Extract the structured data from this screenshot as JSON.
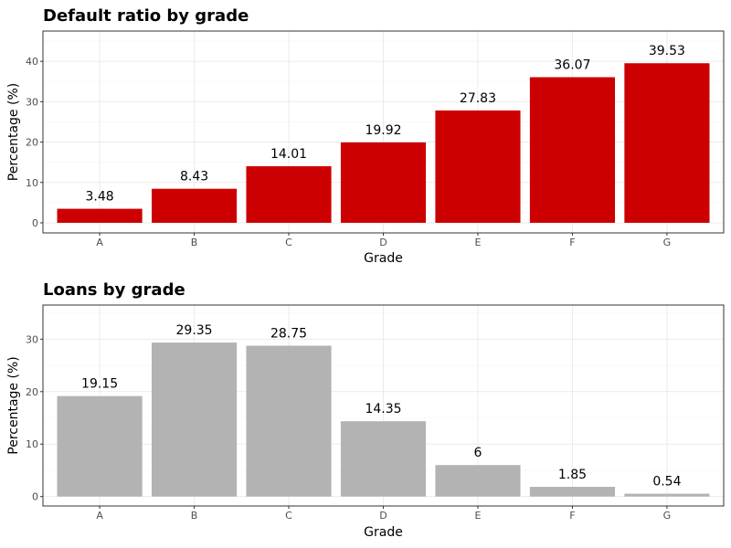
{
  "chart_data": [
    {
      "type": "bar",
      "title": "Default ratio by grade",
      "xlabel": "Grade",
      "ylabel": "Percentage (%)",
      "categories": [
        "A",
        "B",
        "C",
        "D",
        "E",
        "F",
        "G"
      ],
      "values": [
        3.48,
        8.43,
        14.01,
        19.92,
        27.83,
        36.07,
        39.53
      ],
      "data_labels": [
        "3.48",
        "8.43",
        "14.01",
        "19.92",
        "27.83",
        "36.07",
        "39.53"
      ],
      "ylim": [
        -2.5,
        47.5
      ],
      "yticks": [
        0,
        10,
        20,
        30,
        40
      ],
      "ytick_labels": [
        "0",
        "10",
        "20",
        "30",
        "40"
      ],
      "bar_color": "#cc0000",
      "grid": true,
      "legend": "none"
    },
    {
      "type": "bar",
      "title": "Loans by grade",
      "xlabel": "Grade",
      "ylabel": "Percentage (%)",
      "categories": [
        "A",
        "B",
        "C",
        "D",
        "E",
        "F",
        "G"
      ],
      "values": [
        19.15,
        29.35,
        28.75,
        14.35,
        6,
        1.85,
        0.54
      ],
      "data_labels": [
        "19.15",
        "29.35",
        "28.75",
        "14.35",
        "6",
        "1.85",
        "0.54"
      ],
      "ylim": [
        -1.8,
        36.5
      ],
      "yticks": [
        0,
        10,
        20,
        30
      ],
      "ytick_labels": [
        "0",
        "10",
        "20",
        "30"
      ],
      "bar_color": "#b3b3b3",
      "grid": true,
      "legend": "none"
    }
  ]
}
